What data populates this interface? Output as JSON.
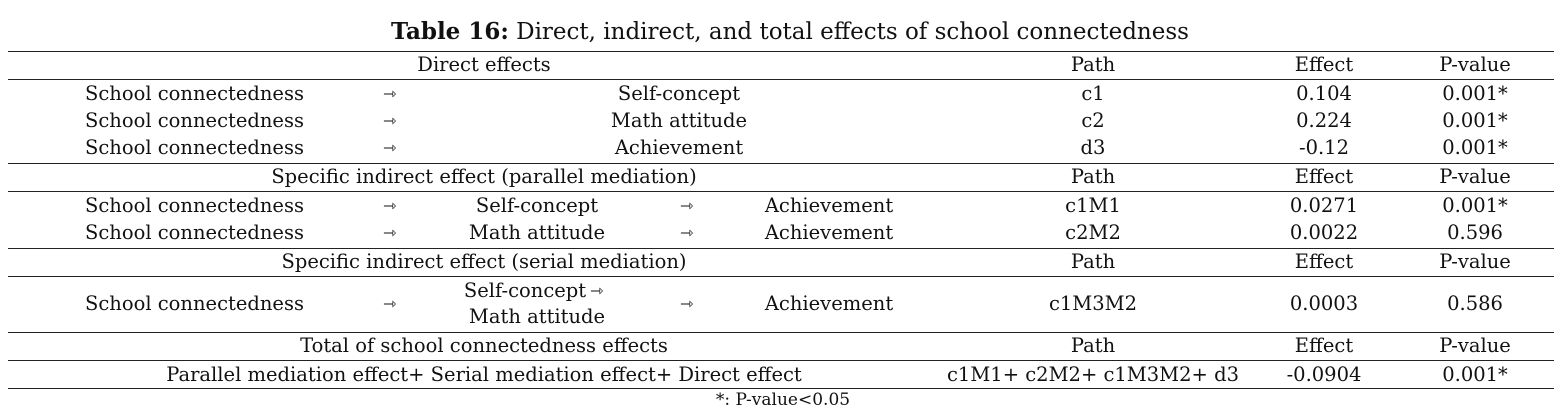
{
  "caption": {
    "label": "Table 16:",
    "text": " Direct, indirect, and total effects of school connectedness"
  },
  "arrow": "⇾",
  "sections": [
    {
      "header": {
        "title": "Direct effects",
        "path": "Path",
        "effect": "Effect",
        "pvalue": "P-value"
      },
      "rows": [
        {
          "source": "School connectedness",
          "target": "Self-concept",
          "path": "c1",
          "effect": "0.104",
          "pvalue": "0.001*"
        },
        {
          "source": "School connectedness",
          "target": "Math attitude",
          "path": "c2",
          "effect": "0.224",
          "pvalue": "0.001*"
        },
        {
          "source": "School connectedness",
          "target": "Achievement",
          "path": "d3",
          "effect": "-0.12",
          "pvalue": "0.001*"
        }
      ]
    },
    {
      "header": {
        "title": "Specific indirect effect (parallel mediation)",
        "path": "Path",
        "effect": "Effect",
        "pvalue": "P-value"
      },
      "rows": [
        {
          "source": "School connectedness",
          "mediator": "Self-concept",
          "target": "Achievement",
          "path": "c1M1",
          "effect": "0.0271",
          "pvalue": "0.001*"
        },
        {
          "source": "School connectedness",
          "mediator": "Math attitude",
          "target": "Achievement",
          "path": "c2M2",
          "effect": "0.0022",
          "pvalue": "0.596"
        }
      ]
    },
    {
      "header": {
        "title": "Specific indirect effect (serial mediation)",
        "path": "Path",
        "effect": "Effect",
        "pvalue": "P-value"
      },
      "rows": [
        {
          "source": "School connectedness",
          "mediator_line1": "Self-concept",
          "mediator_line2": "Math attitude",
          "target": "Achievement",
          "path": "c1M3M2",
          "effect": "0.0003",
          "pvalue": "0.586"
        }
      ]
    },
    {
      "header": {
        "title": "Total of school connectedness effects",
        "path": "Path",
        "effect": "Effect",
        "pvalue": "P-value"
      },
      "rows": [
        {
          "description": "Parallel mediation effect+ Serial mediation effect+ Direct effect",
          "path": "c1M1+ c2M2+ c1M3M2+ d3",
          "effect": "-0.0904",
          "pvalue": "0.001*"
        }
      ]
    }
  ],
  "footnote": "*: P-value<0.05"
}
